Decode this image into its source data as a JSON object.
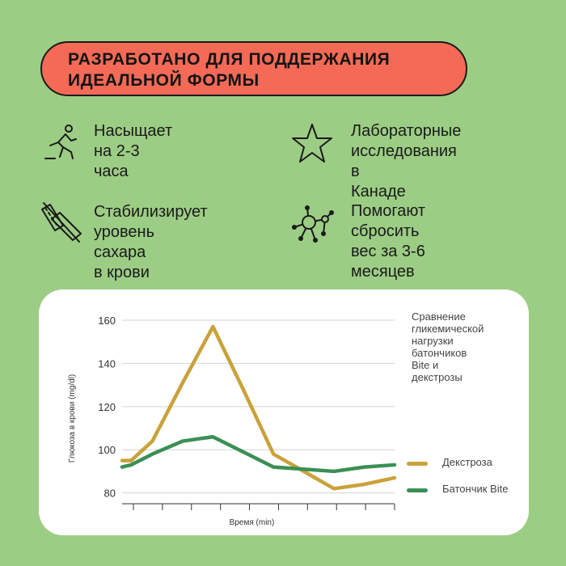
{
  "banner": {
    "line1": "РАЗРАБОТАНО ДЛЯ ПОДДЕРЖАНИЯ",
    "line2": "ИДЕАЛЬНОЙ ФОРМЫ"
  },
  "features": [
    {
      "icon": "runner-icon",
      "lines": [
        "Насыщает",
        "на 2-3 часа"
      ]
    },
    {
      "icon": "star-icon",
      "lines": [
        "Лабораторные",
        "исследования в",
        "Канаде"
      ]
    },
    {
      "icon": "ruler-scale-icon",
      "lines": [
        "Стабилизирует",
        "уровень сахара",
        "в крови"
      ]
    },
    {
      "icon": "molecule-icon",
      "lines": [
        "Помогают сбросить",
        "вес за 3-6 месяцев"
      ]
    }
  ],
  "chart_data": {
    "type": "line",
    "description_lines": [
      "Сравнение",
      "гликемической",
      "нагрузки",
      "батончиков",
      "Bite и",
      "декстрозы"
    ],
    "xlabel": "Время (min)",
    "ylabel": "Глюкоза в крови (mg/dl)",
    "yticks": [
      80,
      100,
      120,
      140,
      160
    ],
    "ylim": [
      75,
      163
    ],
    "xlim": [
      0,
      9
    ],
    "x_tick_count": 9,
    "grid": "horizontal",
    "legend_placement": "right",
    "series": [
      {
        "name": "Декстроза",
        "color": "#c9a23a",
        "x": [
          0,
          0.3,
          1,
          2,
          3,
          4,
          5,
          6,
          7,
          8,
          9
        ],
        "y": [
          95,
          95,
          104,
          131,
          157,
          128,
          98,
          90,
          82,
          84,
          87
        ]
      },
      {
        "name": "Батончик Bite",
        "color": "#3b8f55",
        "x": [
          0,
          0.3,
          1,
          2,
          3,
          4,
          5,
          6,
          7,
          8,
          9
        ],
        "y": [
          92,
          93,
          98,
          104,
          106,
          99,
          92,
          91,
          90,
          92,
          93
        ]
      }
    ]
  }
}
